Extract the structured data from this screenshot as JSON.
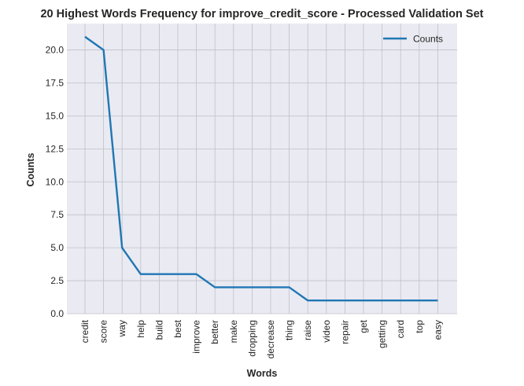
{
  "chart_data": {
    "type": "line",
    "title": "20 Highest Words Frequency for improve_credit_score - Processed Validation Set",
    "xlabel": "Words",
    "ylabel": "Counts",
    "categories": [
      "credit",
      "score",
      "way",
      "help",
      "build",
      "best",
      "improve",
      "better",
      "make",
      "dropping",
      "decrease",
      "thing",
      "raise",
      "video",
      "repair",
      "get",
      "getting",
      "card",
      "top",
      "easy"
    ],
    "series": [
      {
        "name": "Counts",
        "values": [
          21,
          20,
          5,
          3,
          3,
          3,
          3,
          2,
          2,
          2,
          2,
          2,
          1,
          1,
          1,
          1,
          1,
          1,
          1,
          1
        ],
        "color": "#1f77b4"
      }
    ],
    "ylim": [
      0,
      22
    ],
    "yticks": [
      "0.0",
      "2.5",
      "5.0",
      "7.5",
      "10.0",
      "12.5",
      "15.0",
      "17.5",
      "20.0"
    ],
    "grid": true,
    "legend": "top-right",
    "plot_background": "#eaeaf2",
    "grid_color": "#c0c0c8"
  }
}
